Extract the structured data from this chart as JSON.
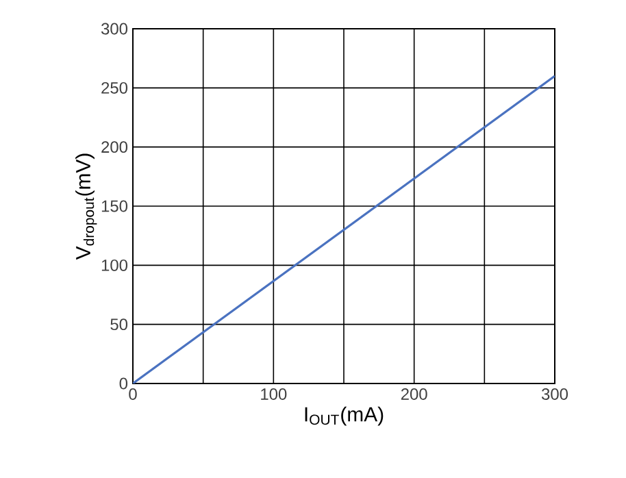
{
  "chart_data": {
    "type": "line",
    "xlabel": "I$_{OUT}$(mA)",
    "ylabel": "V$_{dropout}$(mV)",
    "x": [
      0,
      300
    ],
    "series": [
      {
        "color": "#4a72c0",
        "values": [
          0,
          260
        ]
      }
    ],
    "xlim": [
      0,
      300
    ],
    "ylim": [
      0,
      300
    ],
    "xticks": [
      0,
      {
        "value": 50,
        "label": null
      },
      100,
      {
        "value": 150,
        "label": null
      },
      200,
      {
        "value": 250,
        "label": null
      },
      300
    ],
    "yticks": [
      0,
      50,
      100,
      150,
      200,
      250,
      300
    ],
    "grid": true
  }
}
